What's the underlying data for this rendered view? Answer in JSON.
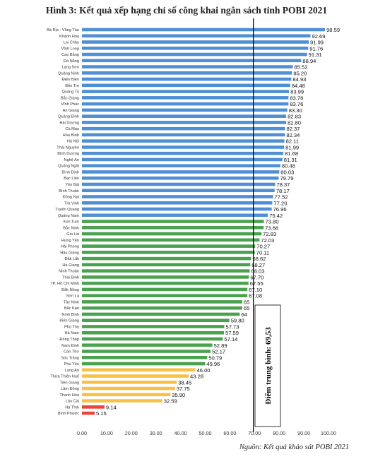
{
  "title": "Hình 3: Kết quả xếp hạng chỉ số công khai ngân sách tỉnh POBI 2021",
  "source": "Nguồn: Kết quả khảo sát POBI 2021",
  "average_label": "Điểm trung bình: 69,53",
  "colors": {
    "blue": "#4f8fd4",
    "green": "#4aa14e",
    "yellow": "#f6c146",
    "red": "#e8463a",
    "average_line": "#000000"
  },
  "chart_data": {
    "type": "bar",
    "orientation": "horizontal",
    "title": "Hình 3: Kết quả xếp hạng chỉ số công khai ngân sách tỉnh POBI 2021",
    "xlim": [
      0,
      100
    ],
    "x_ticks": [
      "0.00",
      "10.00",
      "20.00",
      "30.00",
      "40.00",
      "50.00",
      "60.00",
      "70.00",
      "80.00",
      "90.00",
      "100.00"
    ],
    "average": 69.53,
    "categories": [
      "Bà Rịa - Vũng Tàu",
      "Khánh Hòa",
      "Lai Châu",
      "Vĩnh Long",
      "Cao Bằng",
      "Đà Nẵng",
      "Lạng Sơn",
      "Quảng Ninh",
      "Điện Biên",
      "Bến Tre",
      "Quảng Trị",
      "Bắc Giang",
      "Vĩnh Phúc",
      "An Giang",
      "Quảng Bình",
      "Hải Dương",
      "Cà Mau",
      "Hòa Bình",
      "Hà Nội",
      "Thái Nguyên",
      "Bình Dương",
      "Nghệ An",
      "Quảng Ngãi",
      "Bình Định",
      "Bạc Liêu",
      "Yên Bái",
      "Bình Thuận",
      "Đồng Nai",
      "Trà Vinh",
      "Tuyên Quang",
      "Quảng Nam",
      "Kon Tum",
      "Bắc Ninh",
      "Gia Lai",
      "Hưng Yên",
      "Hải Phòng",
      "Hậu Giang",
      "Đắk Lắk",
      "Hà Giang",
      "Ninh Thuận",
      "Thái Bình",
      "TP. Hồ Chí Minh",
      "Đắk Nông",
      "Sơn La",
      "Tây Ninh",
      "Bắc Kạn",
      "Ninh Bình",
      "Kiên Giang",
      "Phú Thọ",
      "Hà Nam",
      "Đồng Tháp",
      "Nam Định",
      "Cần Thơ",
      "Sóc Trăng",
      "Phú Yên",
      "Long An",
      "Thừa Thiên Huế",
      "Tiền Giang",
      "Lâm Đồng",
      "Thanh Hóa",
      "Lào Cai",
      "Hà Tĩnh",
      "Bình Phước"
    ],
    "values": [
      98.59,
      92.69,
      91.99,
      91.76,
      91.31,
      88.94,
      85.52,
      85.2,
      84.93,
      84.48,
      83.99,
      83.76,
      83.76,
      83.3,
      82.83,
      82.8,
      82.37,
      82.34,
      82.11,
      81.99,
      81.68,
      81.31,
      80.48,
      80.03,
      79.79,
      78.37,
      78.17,
      77.52,
      77.2,
      76.96,
      75.42,
      73.8,
      73.68,
      72.83,
      72.03,
      70.27,
      70.11,
      68.62,
      68.27,
      68.03,
      67.7,
      67.55,
      67.1,
      67.08,
      65,
      65,
      64,
      59.8,
      57.73,
      57.59,
      57.14,
      52.89,
      52.17,
      50.79,
      49.96,
      46.0,
      43.28,
      38.45,
      37.75,
      35.9,
      32.59,
      9.14,
      5.15
    ],
    "value_labels": [
      "98.59",
      "92.69",
      "91.99",
      "91.76",
      "91.31",
      "88.94",
      "85.52",
      "85.20",
      "84.93",
      "84.48",
      "83.99",
      "83.76",
      "83.76",
      "83.30",
      "82.83",
      "82.80",
      "82.37",
      "82.34",
      "82.11",
      "81.99",
      "81.68",
      "81.31",
      "80.48",
      "80.03",
      "79.79",
      "78.37",
      "78.17",
      "77.52",
      "77.20",
      "76.96",
      "75.42",
      "73.80",
      "73.68",
      "72.83",
      "72.03",
      "70.27",
      "70.11",
      "68.62",
      "68.27",
      "68.03",
      "67.70",
      "67.55",
      "67.10",
      "67.08",
      "65",
      "65",
      "64",
      "59.80",
      "57.73",
      "57.59",
      "57.14",
      "52.89",
      "52.17",
      "50.79",
      "49.96",
      "46.00",
      "43.28",
      "38.45",
      "37.75",
      "35.90",
      "32.59",
      "9.14",
      "5.15"
    ],
    "bar_colors": [
      "blue",
      "blue",
      "blue",
      "blue",
      "blue",
      "blue",
      "blue",
      "blue",
      "blue",
      "blue",
      "blue",
      "blue",
      "blue",
      "blue",
      "blue",
      "blue",
      "blue",
      "blue",
      "blue",
      "blue",
      "blue",
      "blue",
      "blue",
      "blue",
      "blue",
      "blue",
      "blue",
      "blue",
      "blue",
      "blue",
      "blue",
      "green",
      "green",
      "green",
      "green",
      "green",
      "green",
      "green",
      "green",
      "green",
      "green",
      "green",
      "green",
      "green",
      "green",
      "green",
      "green",
      "green",
      "green",
      "green",
      "green",
      "green",
      "green",
      "green",
      "green",
      "yellow",
      "yellow",
      "yellow",
      "yellow",
      "yellow",
      "yellow",
      "red",
      "red"
    ],
    "grid": false
  }
}
